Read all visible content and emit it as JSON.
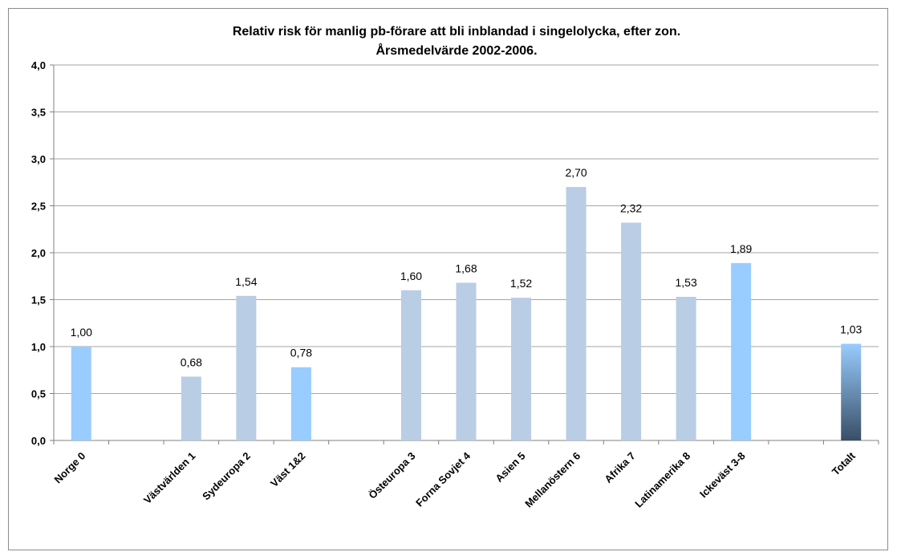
{
  "chart_data": {
    "type": "bar",
    "title": "Relativ risk för manlig pb-förare att bli inblandad i singelolycka, efter zon.",
    "subtitle": "Årsmedelvärde 2002-2006.",
    "xlabel": "",
    "ylabel": "",
    "ylim": [
      0,
      4.0
    ],
    "ytick_step": 0.5,
    "yticks": [
      "0,0",
      "0,5",
      "1,0",
      "1,5",
      "2,0",
      "2,5",
      "3,0",
      "3,5",
      "4,0"
    ],
    "grid": true,
    "legend": "none",
    "slots": [
      {
        "category": "Norge 0",
        "value": 1.0,
        "label": "1,00",
        "color": "light-blue"
      },
      {
        "category": "",
        "value": null,
        "label": "",
        "color": ""
      },
      {
        "category": "Västvärlden 1",
        "value": 0.68,
        "label": "0,68",
        "color": "grey-blue"
      },
      {
        "category": "Sydeuropa 2",
        "value": 1.54,
        "label": "1,54",
        "color": "grey-blue"
      },
      {
        "category": "Väst 1&2",
        "value": 0.78,
        "label": "0,78",
        "color": "light-blue"
      },
      {
        "category": "",
        "value": null,
        "label": "",
        "color": ""
      },
      {
        "category": "Östeuropa 3",
        "value": 1.6,
        "label": "1,60",
        "color": "grey-blue"
      },
      {
        "category": "Forna Sovjet 4",
        "value": 1.68,
        "label": "1,68",
        "color": "grey-blue"
      },
      {
        "category": "Asien 5",
        "value": 1.52,
        "label": "1,52",
        "color": "grey-blue"
      },
      {
        "category": "Mellanöstern 6",
        "value": 2.7,
        "label": "2,70",
        "color": "grey-blue"
      },
      {
        "category": "Afrika 7",
        "value": 2.32,
        "label": "2,32",
        "color": "grey-blue"
      },
      {
        "category": "Latinamerika 8",
        "value": 1.53,
        "label": "1,53",
        "color": "grey-blue"
      },
      {
        "category": "Ickeväst 3-8",
        "value": 1.89,
        "label": "1,89",
        "color": "light-blue"
      },
      {
        "category": "",
        "value": null,
        "label": "",
        "color": ""
      },
      {
        "category": "Totalt",
        "value": 1.03,
        "label": "1,03",
        "color": "gradient-dark"
      }
    ],
    "colors": {
      "light-blue": "#99ccff",
      "grey-blue": "#b9cde5",
      "gradient-top": "#99ccff",
      "gradient-bottom": "#384e66",
      "grid": "#a6a6a6",
      "axis": "#808080"
    }
  }
}
